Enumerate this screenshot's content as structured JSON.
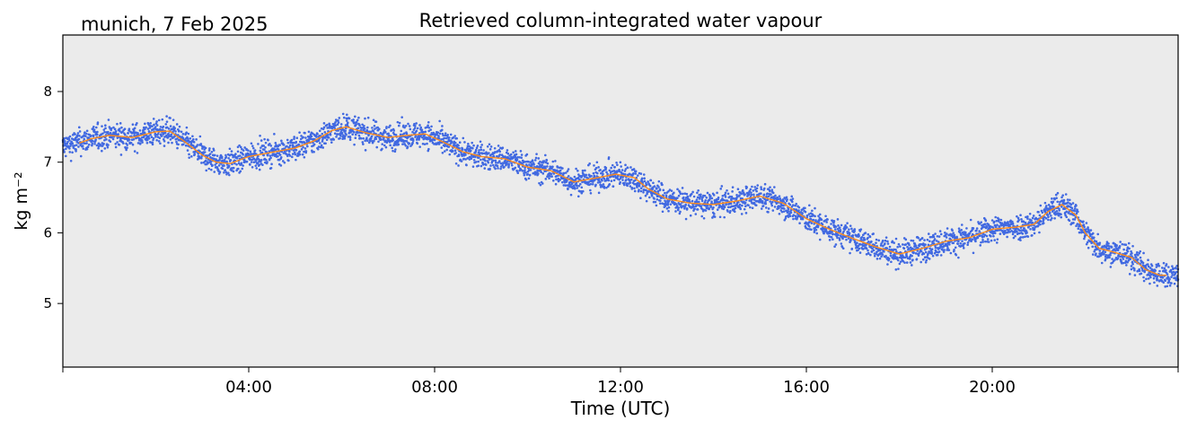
{
  "header": {
    "location_date": "munich, 7 Feb 2025"
  },
  "chart_data": {
    "type": "scatter",
    "title": "Retrieved column-integrated water vapour",
    "xlabel": "Time (UTC)",
    "ylabel": "kg m⁻²",
    "x_unit": "hours UTC",
    "xlim": [
      0,
      24
    ],
    "ylim": [
      4.1,
      8.8
    ],
    "x_ticks": [
      0,
      4,
      8,
      12,
      16,
      20,
      24
    ],
    "x_tick_labels": [
      "",
      "04:00",
      "08:00",
      "12:00",
      "16:00",
      "20:00",
      ""
    ],
    "y_ticks": [
      5,
      6,
      7,
      8
    ],
    "y_tick_labels": [
      "5",
      "6",
      "7",
      "8"
    ],
    "grid": false,
    "background_color": "#ebebeb",
    "series": [
      {
        "kind": "scatter",
        "color": "#4169e1",
        "spread": 0.09,
        "x": [
          0.0,
          0.3,
          0.6,
          1.0,
          1.5,
          2.0,
          2.3,
          2.6,
          3.0,
          3.3,
          3.6,
          4.0,
          4.5,
          5.0,
          5.4,
          5.8,
          6.1,
          6.5,
          7.0,
          7.4,
          7.8,
          8.2,
          8.6,
          9.0,
          9.5,
          10.0,
          10.5,
          11.0,
          11.5,
          11.9,
          12.3,
          12.6,
          13.0,
          13.5,
          14.0,
          14.5,
          15.0,
          15.5,
          16.0,
          16.5,
          17.0,
          17.5,
          18.0,
          18.5,
          19.0,
          19.5,
          20.0,
          20.5,
          20.9,
          21.2,
          21.5,
          21.8,
          22.0,
          22.3,
          22.6,
          23.0,
          23.3,
          23.6,
          24.0
        ],
        "y": [
          7.22,
          7.28,
          7.33,
          7.38,
          7.35,
          7.43,
          7.44,
          7.3,
          7.1,
          7.0,
          6.98,
          7.08,
          7.14,
          7.2,
          7.3,
          7.45,
          7.5,
          7.42,
          7.35,
          7.38,
          7.4,
          7.28,
          7.15,
          7.08,
          7.05,
          6.93,
          6.88,
          6.72,
          6.78,
          6.83,
          6.78,
          6.62,
          6.48,
          6.42,
          6.4,
          6.45,
          6.52,
          6.42,
          6.2,
          6.05,
          5.92,
          5.8,
          5.7,
          5.78,
          5.88,
          5.93,
          6.05,
          6.08,
          6.12,
          6.3,
          6.4,
          6.25,
          6.0,
          5.78,
          5.73,
          5.65,
          5.48,
          5.4,
          5.42
        ]
      },
      {
        "kind": "line",
        "color": "#ff8c1a",
        "x": [
          0.35,
          0.6,
          1.0,
          1.5,
          2.0,
          2.3,
          2.6,
          3.0,
          3.3,
          3.6,
          4.0,
          4.5,
          5.0,
          5.4,
          5.8,
          6.1,
          6.5,
          7.0,
          7.4,
          7.8,
          8.2,
          8.6,
          9.0,
          9.5,
          10.0,
          10.5,
          11.0,
          11.5,
          11.9,
          12.3,
          12.6,
          13.0,
          13.5,
          14.0,
          14.5,
          15.0,
          15.5,
          16.0,
          16.5,
          17.0,
          17.5,
          18.0,
          18.5,
          19.0,
          19.5,
          20.0,
          20.5,
          20.9,
          21.2,
          21.5,
          21.8,
          22.0,
          22.3,
          22.6,
          23.0,
          23.3,
          23.6,
          23.75
        ],
        "y": [
          7.27,
          7.33,
          7.38,
          7.35,
          7.43,
          7.44,
          7.3,
          7.1,
          7.0,
          6.98,
          7.08,
          7.14,
          7.2,
          7.3,
          7.45,
          7.5,
          7.42,
          7.35,
          7.38,
          7.4,
          7.28,
          7.15,
          7.08,
          7.05,
          6.93,
          6.88,
          6.72,
          6.78,
          6.83,
          6.78,
          6.62,
          6.48,
          6.42,
          6.4,
          6.45,
          6.52,
          6.42,
          6.2,
          6.05,
          5.92,
          5.8,
          5.7,
          5.78,
          5.88,
          5.93,
          6.05,
          6.08,
          6.12,
          6.3,
          6.4,
          6.25,
          6.0,
          5.78,
          5.73,
          5.65,
          5.48,
          5.4,
          5.4
        ]
      }
    ]
  }
}
